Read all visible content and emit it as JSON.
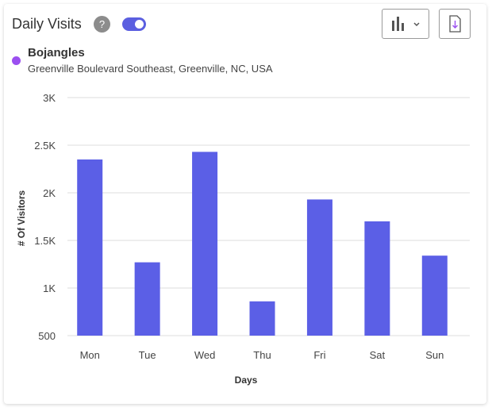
{
  "header": {
    "title": "Daily Visits",
    "help_glyph": "?",
    "toggle_on": true,
    "chart_type_icon": "bar-chart-icon",
    "dropdown_icon": "chevron-down-icon",
    "download_icon": "download-file-icon"
  },
  "location": {
    "name": "Bojangles",
    "address": "Greenville Boulevard Southeast, Greenville, NC, USA",
    "dot_color": "#9b4ff0"
  },
  "chart_data": {
    "type": "bar",
    "categories": [
      "Mon",
      "Tue",
      "Wed",
      "Thu",
      "Fri",
      "Sat",
      "Sun"
    ],
    "series": [
      {
        "values": [
          2350,
          1270,
          2430,
          860,
          1930,
          1700,
          1340
        ],
        "color": "#5b5fe6"
      }
    ],
    "xlabel": "Days",
    "ylabel": "# Of Visitors",
    "ylim": [
      500,
      3000
    ],
    "yticks": [
      500,
      1000,
      1500,
      2000,
      2500,
      3000
    ],
    "ytick_labels": [
      "500",
      "1K",
      "1.5K",
      "2K",
      "2.5K",
      "3K"
    ],
    "grid": true
  }
}
